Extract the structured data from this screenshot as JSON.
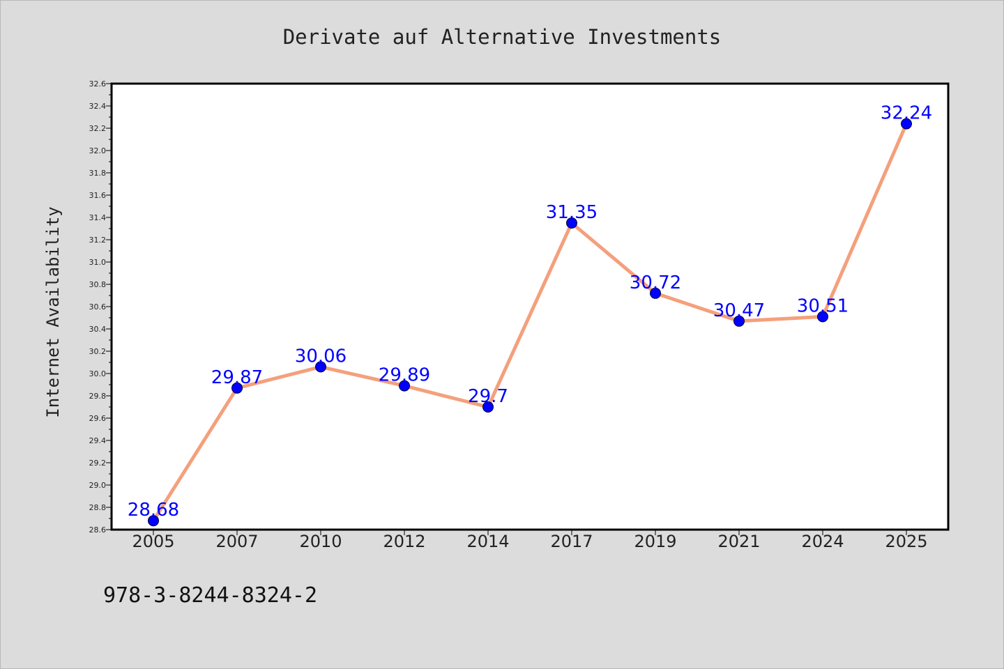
{
  "chart_data": {
    "type": "line",
    "title": "Derivate auf Alternative Investments",
    "xlabel": "",
    "ylabel": "Internet Availability",
    "categories": [
      "2005",
      "2007",
      "2010",
      "2012",
      "2014",
      "2017",
      "2019",
      "2021",
      "2024",
      "2025"
    ],
    "series": [
      {
        "values": [
          28.68,
          29.87,
          30.06,
          29.89,
          29.7,
          31.35,
          30.72,
          30.47,
          30.51,
          32.24
        ],
        "labels": [
          "28.68",
          "29.87",
          "30.06",
          "29.89",
          "29.7",
          "31.35",
          "30.72",
          "30.47",
          "30.51",
          "32.24"
        ],
        "line_color": "#f4a07c",
        "marker_color": "#0000ff"
      }
    ],
    "ylim": [
      28.6,
      32.6
    ],
    "yticks": [
      "28.6",
      "28.8",
      "29.0",
      "29.2",
      "29.4",
      "29.6",
      "29.8",
      "30.0",
      "30.2",
      "30.4",
      "30.6",
      "30.8",
      "31.0",
      "31.2",
      "31.4",
      "31.6",
      "31.8",
      "32.0",
      "32.2",
      "32.4",
      "32.6"
    ],
    "grid": false,
    "legend": "none",
    "label_color": "#0000ff",
    "background": "#dcdcdc",
    "plot_background": "#ffffff"
  },
  "footer": {
    "isbn": "978-3-8244-8324-2"
  }
}
